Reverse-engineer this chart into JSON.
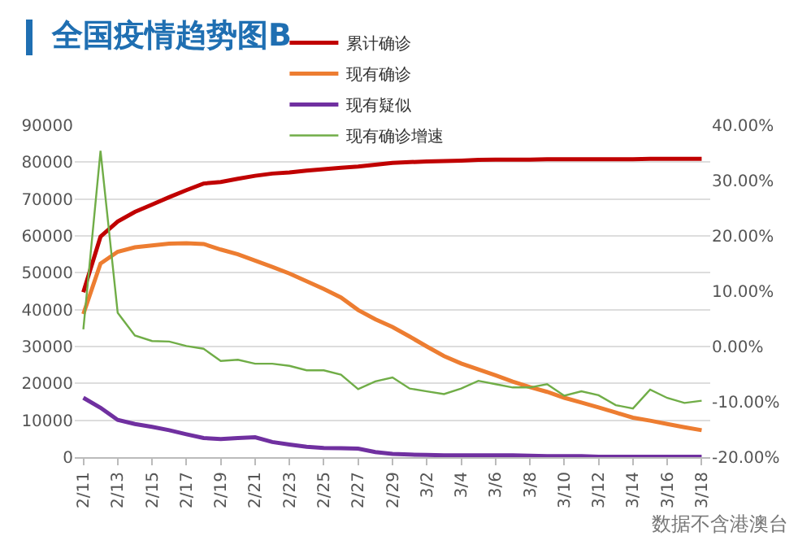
{
  "chart_data": {
    "type": "line",
    "title": "全国疫情趋势图B",
    "categories": [
      "2/11",
      null,
      "2/13",
      null,
      "2/15",
      null,
      "2/17",
      null,
      "2/19",
      null,
      "2/21",
      null,
      "2/23",
      null,
      "2/25",
      null,
      "2/27",
      null,
      "2/29",
      null,
      "3/2",
      null,
      "3/4",
      null,
      "3/6",
      null,
      "3/8",
      null,
      "3/10",
      null,
      "3/12",
      null,
      "3/14",
      null,
      "3/16",
      null,
      "3/18"
    ],
    "series": [
      {
        "name": "累计确诊",
        "color": "#c00000",
        "values": [
          44700,
          59800,
          63900,
          66500,
          68500,
          70500,
          72400,
          74200,
          74600,
          75500,
          76300,
          76900,
          77200,
          77700,
          78100,
          78500,
          78800,
          79300,
          79800,
          80000,
          80200,
          80300,
          80400,
          80600,
          80700,
          80700,
          80700,
          80800,
          80800,
          80800,
          80800,
          80800,
          80800,
          80900,
          80900,
          80900,
          80900
        ]
      },
      {
        "name": "现有确诊",
        "color": "#ed7d31",
        "values": [
          38800,
          52500,
          55700,
          56900,
          57400,
          57900,
          58000,
          57800,
          56300,
          55000,
          53300,
          51600,
          49800,
          47700,
          45600,
          43300,
          39900,
          37400,
          35300,
          32700,
          30000,
          27400,
          25400,
          23800,
          22200,
          20500,
          19000,
          17700,
          16100,
          14800,
          13500,
          12100,
          10700,
          9900,
          9000,
          8100,
          7300
        ]
      },
      {
        "name": "现有疑似",
        "color": "#7030a0",
        "values": [
          16100,
          13400,
          10100,
          9000,
          8200,
          7300,
          6200,
          5200,
          4900,
          5200,
          5400,
          4100,
          3400,
          2800,
          2500,
          2400,
          2300,
          1400,
          900,
          700,
          600,
          500,
          500,
          500,
          500,
          500,
          400,
          300,
          300,
          300,
          100,
          100,
          100,
          100,
          100,
          100,
          100
        ]
      },
      {
        "name": "现有确诊增速",
        "color": "#70ad47",
        "axis": "y2",
        "values": [
          3.1,
          35.4,
          6.1,
          2.0,
          1.0,
          0.9,
          0.1,
          -0.4,
          -2.6,
          -2.4,
          -3.1,
          -3.1,
          -3.5,
          -4.3,
          -4.3,
          -5.1,
          -7.7,
          -6.3,
          -5.6,
          -7.6,
          -8.1,
          -8.6,
          -7.6,
          -6.2,
          -6.8,
          -7.4,
          -7.4,
          -6.8,
          -8.9,
          -8.1,
          -8.8,
          -10.6,
          -11.2,
          -7.8,
          -9.3,
          -10.2,
          -9.8
        ]
      }
    ],
    "ylim": [
      0,
      90000
    ],
    "yticks": [
      0,
      10000,
      20000,
      30000,
      40000,
      50000,
      60000,
      70000,
      80000,
      90000
    ],
    "y2lim": [
      -20,
      40
    ],
    "y2ticks": [
      {
        "value": 40,
        "label": "40.00%"
      },
      {
        "value": 30,
        "label": "30.00%"
      },
      {
        "value": 20,
        "label": "20.00%"
      },
      {
        "value": 10,
        "label": "10.00%"
      },
      {
        "value": 0,
        "label": "0.00%"
      },
      {
        "value": -10,
        "label": "-10.00%"
      },
      {
        "value": -20,
        "label": "-20.00%"
      }
    ],
    "grid": "y",
    "legend": "top right",
    "marker": "none",
    "line_style": "solid",
    "annotations": [
      "数据不含港澳台"
    ]
  }
}
